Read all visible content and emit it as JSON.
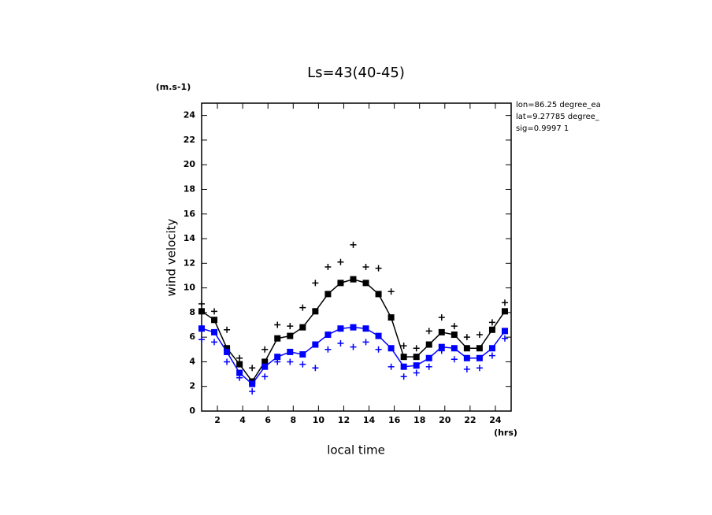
{
  "chart_data": {
    "type": "line",
    "title": "Ls=43(40-45)",
    "ylabel": "wind velocity",
    "yunit": "(m.s-1)",
    "xlabel": "local time",
    "xunit": "(hrs)",
    "annotations": [
      "lon=86.25 degree_ea",
      "lat=9.27785 degree_",
      "sig=0.9997 1"
    ],
    "x": [
      0.75,
      1.75,
      2.75,
      3.75,
      4.75,
      5.75,
      6.75,
      7.75,
      8.75,
      9.75,
      10.75,
      11.75,
      12.75,
      13.75,
      14.75,
      15.75,
      16.75,
      17.75,
      18.75,
      19.75,
      20.75,
      21.75,
      22.75,
      23.75,
      24.75
    ],
    "series": [
      {
        "color": "#000000",
        "marker": "square",
        "values": [
          8.1,
          7.4,
          5.1,
          3.8,
          2.4,
          4.0,
          5.9,
          6.1,
          6.8,
          8.1,
          9.5,
          10.4,
          10.7,
          10.4,
          9.5,
          7.6,
          4.4,
          4.4,
          5.4,
          6.4,
          6.2,
          5.1,
          5.1,
          6.6,
          8.1
        ]
      },
      {
        "color": "#0000ff",
        "marker": "square",
        "values": [
          6.7,
          6.4,
          4.8,
          3.1,
          2.2,
          3.6,
          4.4,
          4.8,
          4.6,
          5.4,
          6.2,
          6.7,
          6.8,
          6.7,
          6.1,
          5.1,
          3.6,
          3.7,
          4.3,
          5.2,
          5.1,
          4.3,
          4.3,
          5.1,
          6.5
        ]
      },
      {
        "color": "#000000",
        "marker": "plus",
        "values": [
          8.7,
          8.1,
          6.6,
          4.3,
          3.5,
          5.0,
          7.0,
          6.9,
          8.4,
          10.4,
          11.7,
          12.1,
          13.5,
          11.7,
          11.6,
          9.7,
          5.3,
          5.1,
          6.5,
          7.6,
          6.9,
          6.0,
          6.2,
          7.2,
          8.8
        ]
      },
      {
        "color": "#0000ff",
        "marker": "plus",
        "values": [
          5.8,
          5.6,
          4.0,
          2.7,
          1.6,
          2.8,
          4.0,
          4.0,
          3.8,
          3.5,
          5.0,
          5.5,
          5.2,
          5.6,
          5.0,
          3.6,
          2.8,
          3.1,
          3.6,
          4.9,
          4.2,
          3.4,
          3.5,
          4.5,
          5.9
        ]
      }
    ],
    "xlim": [
      0.75,
      25.25
    ],
    "ylim": [
      0,
      25
    ],
    "xticks": [
      2,
      4,
      6,
      8,
      10,
      12,
      14,
      16,
      18,
      20,
      22,
      24
    ],
    "yticks": [
      0,
      2,
      4,
      6,
      8,
      10,
      12,
      14,
      16,
      18,
      20,
      22,
      24
    ],
    "grid": false
  }
}
